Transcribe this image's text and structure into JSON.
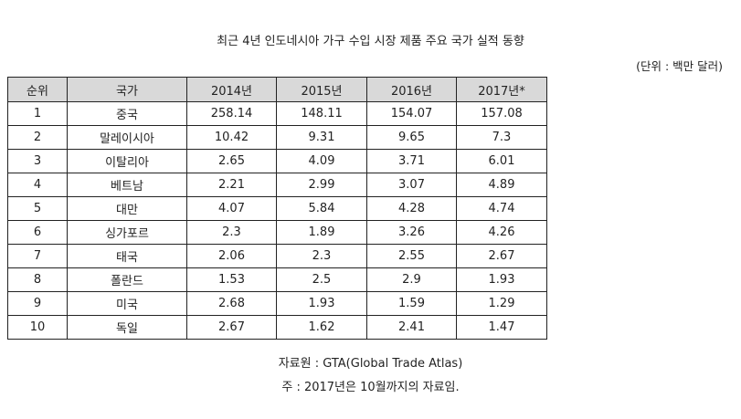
{
  "title": "최근 4년 인도네시아 가구 수입 시장 제품 주요 국가 실적 동향",
  "unit": "(단위 : 백만 달러)",
  "table": {
    "headers": [
      "순위",
      "국가",
      "2014년",
      "2015년",
      "2016년",
      "2017년*"
    ],
    "rows": [
      [
        "1",
        "중국",
        "258.14",
        "148.11",
        "154.07",
        "157.08"
      ],
      [
        "2",
        "말레이시아",
        "10.42",
        "9.31",
        "9.65",
        "7.3"
      ],
      [
        "3",
        "이탈리아",
        "2.65",
        "4.09",
        "3.71",
        "6.01"
      ],
      [
        "4",
        "베트남",
        "2.21",
        "2.99",
        "3.07",
        "4.89"
      ],
      [
        "5",
        "대만",
        "4.07",
        "5.84",
        "4.28",
        "4.74"
      ],
      [
        "6",
        "싱가포르",
        "2.3",
        "1.89",
        "3.26",
        "4.26"
      ],
      [
        "7",
        "태국",
        "2.06",
        "2.3",
        "2.55",
        "2.67"
      ],
      [
        "8",
        "폴란드",
        "1.53",
        "2.5",
        "2.9",
        "1.93"
      ],
      [
        "9",
        "미국",
        "2.68",
        "1.93",
        "1.59",
        "1.29"
      ],
      [
        "10",
        "독일",
        "2.67",
        "1.62",
        "2.41",
        "1.47"
      ]
    ]
  },
  "source": "자료원 : GTA(Global Trade Atlas)",
  "note": "주 : 2017년은 10월까지의 자료임."
}
